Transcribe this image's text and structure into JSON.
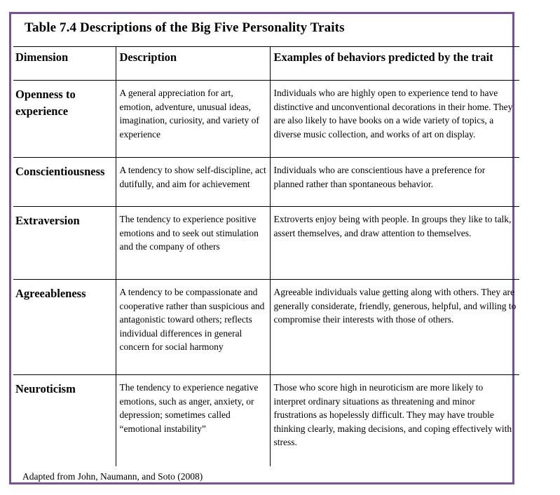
{
  "title": "Table 7.4 Descriptions of the Big Five Personality Traits",
  "headers": {
    "dimension": "Dimension",
    "description": "Description",
    "examples": "Examples of behaviors predicted by the trait"
  },
  "rows": [
    {
      "dimension": "Openness to experience",
      "description": "A general appreciation for art, emotion, adventure, unusual ideas, imagination, curiosity, and variety of experience",
      "examples": "Individuals who are highly open to experience tend to have distinctive and unconventional decorations in their home. They are also likely to have books on a wide variety of topics, a diverse music collection, and works of art on display."
    },
    {
      "dimension": "Conscientiousness",
      "description": "A tendency to show self-discipline, act dutifully, and aim for achievement",
      "examples": "Individuals who are conscientious have a preference for planned rather than spontaneous behavior."
    },
    {
      "dimension": "Extraversion",
      "description": "The tendency to experience positive emotions and to seek out stimulation and the company of others",
      "examples": "Extroverts enjoy being with people. In groups they like to talk, assert themselves, and draw attention to themselves."
    },
    {
      "dimension": "Agreeableness",
      "description": "A tendency to be compassionate and cooperative rather than suspicious and antagonistic toward others; reflects individual differences in general concern for social harmony",
      "examples": "Agreeable individuals value getting along with others. They are generally considerate, friendly, generous, helpful, and willing to compromise their interests with those of others."
    },
    {
      "dimension": "Neuroticism",
      "description": "The tendency to experience negative emotions, such as anger, anxiety, or depression; sometimes called “emotional instability”",
      "examples": "Those who score high in neuroticism are more likely to interpret ordinary situations as threatening and minor frustrations as hopelessly difficult. They may have trouble thinking clearly, making decisions, and coping effectively with stress."
    }
  ],
  "source": "Adapted from John, Naumann, and Soto (2008)",
  "colors": {
    "frame_border": "#7a4f9c",
    "grid_lines": "#000000"
  }
}
